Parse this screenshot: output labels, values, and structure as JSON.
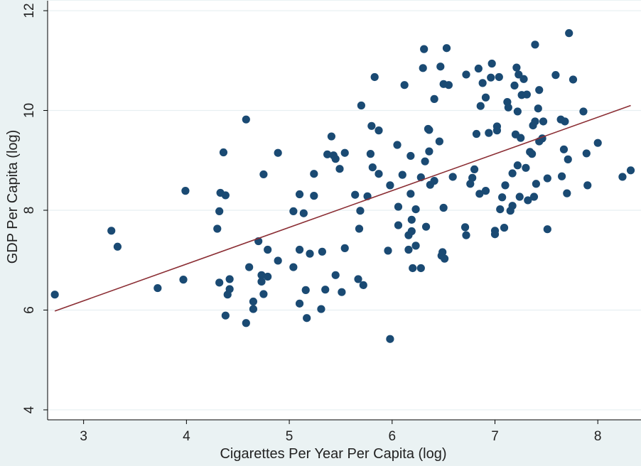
{
  "chart_data": {
    "type": "scatter",
    "title": "",
    "xlabel": "Cigarettes Per Year Per Capita (log)",
    "ylabel": "GDP Per Capita (log)",
    "xlim": [
      2.65,
      8.42
    ],
    "ylim": [
      3.8,
      12.2
    ],
    "xticks": [
      "3",
      "4",
      "5",
      "6",
      "7",
      "8"
    ],
    "yticks": [
      "4",
      "6",
      "8",
      "10",
      "12"
    ],
    "grid": true,
    "colors": {
      "background": "#eaf2f3",
      "plot": "#ffffff",
      "point": "#1a4a73",
      "fit_line": "#8b2e34",
      "grid": "#e7eff2"
    },
    "fit_line": {
      "x": [
        2.72,
        8.32
      ],
      "y": [
        5.98,
        10.1
      ]
    },
    "points": [
      [
        2.72,
        6.31
      ],
      [
        3.27,
        7.59
      ],
      [
        3.33,
        7.27
      ],
      [
        3.72,
        6.44
      ],
      [
        3.97,
        6.61
      ],
      [
        3.99,
        8.39
      ],
      [
        4.3,
        7.63
      ],
      [
        4.32,
        7.98
      ],
      [
        4.32,
        6.55
      ],
      [
        4.33,
        8.35
      ],
      [
        4.36,
        9.16
      ],
      [
        4.38,
        5.89
      ],
      [
        4.38,
        8.3
      ],
      [
        4.4,
        6.31
      ],
      [
        4.42,
        6.62
      ],
      [
        4.42,
        6.42
      ],
      [
        4.58,
        9.82
      ],
      [
        4.58,
        5.74
      ],
      [
        4.61,
        6.86
      ],
      [
        4.65,
        6.17
      ],
      [
        4.65,
        6.02
      ],
      [
        4.7,
        7.38
      ],
      [
        4.73,
        6.7
      ],
      [
        4.73,
        6.57
      ],
      [
        4.75,
        8.72
      ],
      [
        4.75,
        6.32
      ],
      [
        4.79,
        6.67
      ],
      [
        4.79,
        7.21
      ],
      [
        4.89,
        9.15
      ],
      [
        4.89,
        6.99
      ],
      [
        5.04,
        7.98
      ],
      [
        5.04,
        6.86
      ],
      [
        5.1,
        8.32
      ],
      [
        5.1,
        7.21
      ],
      [
        5.1,
        6.13
      ],
      [
        5.14,
        7.94
      ],
      [
        5.16,
        6.4
      ],
      [
        5.17,
        5.84
      ],
      [
        5.2,
        7.13
      ],
      [
        5.24,
        8.29
      ],
      [
        5.24,
        8.73
      ],
      [
        5.31,
        6.02
      ],
      [
        5.32,
        7.17
      ],
      [
        5.35,
        6.41
      ],
      [
        5.37,
        9.12
      ],
      [
        5.41,
        9.48
      ],
      [
        5.43,
        9.1
      ],
      [
        5.45,
        6.7
      ],
      [
        5.45,
        9.03
      ],
      [
        5.49,
        8.83
      ],
      [
        5.51,
        6.36
      ],
      [
        5.54,
        9.15
      ],
      [
        5.54,
        7.24
      ],
      [
        5.64,
        8.31
      ],
      [
        5.67,
        6.62
      ],
      [
        5.68,
        7.63
      ],
      [
        5.69,
        7.99
      ],
      [
        5.7,
        10.1
      ],
      [
        5.72,
        6.5
      ],
      [
        5.76,
        8.28
      ],
      [
        5.79,
        9.13
      ],
      [
        5.8,
        9.69
      ],
      [
        5.81,
        8.86
      ],
      [
        5.83,
        10.67
      ],
      [
        5.87,
        9.6
      ],
      [
        5.87,
        8.73
      ],
      [
        5.96,
        7.19
      ],
      [
        5.98,
        8.5
      ],
      [
        5.98,
        5.42
      ],
      [
        6.05,
        9.31
      ],
      [
        6.06,
        7.7
      ],
      [
        6.06,
        8.07
      ],
      [
        6.1,
        8.71
      ],
      [
        6.12,
        10.51
      ],
      [
        6.16,
        7.5
      ],
      [
        6.16,
        7.21
      ],
      [
        6.18,
        9.09
      ],
      [
        6.18,
        8.33
      ],
      [
        6.19,
        7.81
      ],
      [
        6.19,
        7.58
      ],
      [
        6.2,
        6.84
      ],
      [
        6.23,
        8.02
      ],
      [
        6.23,
        7.29
      ],
      [
        6.28,
        6.84
      ],
      [
        6.28,
        8.66
      ],
      [
        6.3,
        10.85
      ],
      [
        6.31,
        11.23
      ],
      [
        6.32,
        8.98
      ],
      [
        6.33,
        7.67
      ],
      [
        6.35,
        9.63
      ],
      [
        6.36,
        9.18
      ],
      [
        6.36,
        9.61
      ],
      [
        6.37,
        8.51
      ],
      [
        6.41,
        8.59
      ],
      [
        6.41,
        10.23
      ],
      [
        6.46,
        9.38
      ],
      [
        6.47,
        10.88
      ],
      [
        6.48,
        7.09
      ],
      [
        6.49,
        7.16
      ],
      [
        6.5,
        8.05
      ],
      [
        6.5,
        10.53
      ],
      [
        6.51,
        7.03
      ],
      [
        6.53,
        11.25
      ],
      [
        6.55,
        10.51
      ],
      [
        6.59,
        8.67
      ],
      [
        6.71,
        7.66
      ],
      [
        6.72,
        7.5
      ],
      [
        6.72,
        10.72
      ],
      [
        6.76,
        8.53
      ],
      [
        6.78,
        8.65
      ],
      [
        6.8,
        8.82
      ],
      [
        6.82,
        9.53
      ],
      [
        6.84,
        10.84
      ],
      [
        6.85,
        8.33
      ],
      [
        6.86,
        10.09
      ],
      [
        6.88,
        10.55
      ],
      [
        6.91,
        8.39
      ],
      [
        6.91,
        10.26
      ],
      [
        6.94,
        9.55
      ],
      [
        6.96,
        10.66
      ],
      [
        6.97,
        10.94
      ],
      [
        7.0,
        7.59
      ],
      [
        7.0,
        7.52
      ],
      [
        7.02,
        9.6
      ],
      [
        7.02,
        9.68
      ],
      [
        7.04,
        10.67
      ],
      [
        7.05,
        8.02
      ],
      [
        7.07,
        8.26
      ],
      [
        7.09,
        7.65
      ],
      [
        7.1,
        8.5
      ],
      [
        7.12,
        10.17
      ],
      [
        7.13,
        10.06
      ],
      [
        7.15,
        7.99
      ],
      [
        7.17,
        8.09
      ],
      [
        7.17,
        8.74
      ],
      [
        7.19,
        10.5
      ],
      [
        7.2,
        9.52
      ],
      [
        7.21,
        10.86
      ],
      [
        7.22,
        9.98
      ],
      [
        7.22,
        8.9
      ],
      [
        7.23,
        10.72
      ],
      [
        7.24,
        8.27
      ],
      [
        7.25,
        9.45
      ],
      [
        7.26,
        10.31
      ],
      [
        7.28,
        10.63
      ],
      [
        7.3,
        8.85
      ],
      [
        7.31,
        10.32
      ],
      [
        7.32,
        8.2
      ],
      [
        7.34,
        9.17
      ],
      [
        7.36,
        9.13
      ],
      [
        7.37,
        9.7
      ],
      [
        7.38,
        8.27
      ],
      [
        7.39,
        9.78
      ],
      [
        7.39,
        11.32
      ],
      [
        7.4,
        8.53
      ],
      [
        7.42,
        10.04
      ],
      [
        7.43,
        10.41
      ],
      [
        7.43,
        9.38
      ],
      [
        7.46,
        9.44
      ],
      [
        7.47,
        9.78
      ],
      [
        7.51,
        7.62
      ],
      [
        7.51,
        8.64
      ],
      [
        7.59,
        10.71
      ],
      [
        7.64,
        9.82
      ],
      [
        7.65,
        8.68
      ],
      [
        7.67,
        9.22
      ],
      [
        7.68,
        9.78
      ],
      [
        7.7,
        8.34
      ],
      [
        7.71,
        9.02
      ],
      [
        7.72,
        11.55
      ],
      [
        7.76,
        10.62
      ],
      [
        7.86,
        9.98
      ],
      [
        7.89,
        9.14
      ],
      [
        7.9,
        8.5
      ],
      [
        8.0,
        9.35
      ],
      [
        8.24,
        8.67
      ],
      [
        8.32,
        8.8
      ]
    ]
  }
}
